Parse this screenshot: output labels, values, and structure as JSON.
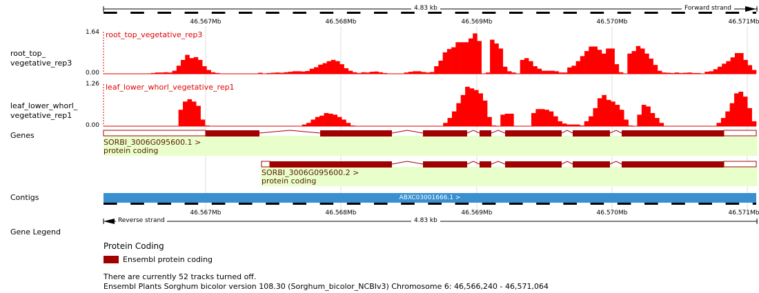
{
  "ruler_top": {
    "length_label": "4.83 kb",
    "strand_label": "Forward strand",
    "ticks": [
      "46.567Mb",
      "46.568Mb",
      "46.569Mb",
      "46.570Mb",
      "46.571Mb"
    ]
  },
  "ruler_bottom": {
    "length_label": "4.83 kb",
    "strand_label": "Reverse strand",
    "ticks": [
      "46.567Mb",
      "46.568Mb",
      "46.569Mb",
      "46.570Mb",
      "46.571Mb"
    ]
  },
  "tracks": [
    {
      "label_line1": "root_top_",
      "label_line2": "vegetative_rep3",
      "title": "root_top_vegetative_rep3",
      "ymax_label": "1.64",
      "ymin_label": "0.00",
      "ymax": 1.64,
      "values": [
        0,
        0,
        0,
        0,
        0,
        0,
        0,
        0,
        0,
        0,
        0,
        0.03,
        0.05,
        0.05,
        0.06,
        0.05,
        0.12,
        0.32,
        0.55,
        0.75,
        0.62,
        0.66,
        0.55,
        0.3,
        0.15,
        0.06,
        0.03,
        0,
        0,
        0,
        0,
        0,
        0,
        0,
        0,
        0,
        0.04,
        0,
        0.03,
        0.04,
        0.05,
        0.04,
        0.06,
        0.08,
        0.1,
        0.1,
        0.09,
        0.11,
        0.2,
        0.26,
        0.36,
        0.42,
        0.5,
        0.55,
        0.5,
        0.38,
        0.22,
        0.12,
        0.06,
        0.03,
        0.06,
        0.05,
        0.08,
        0.09,
        0.06,
        0.03,
        0,
        0,
        0,
        0,
        0.05,
        0.08,
        0.1,
        0.1,
        0.07,
        0.05,
        0.07,
        0.3,
        0.52,
        0.85,
        0.98,
        1.05,
        1.25,
        1.25,
        1.25,
        1.4,
        1.6,
        1.3,
        0,
        0.05,
        1.35,
        1.2,
        1.0,
        0.28,
        0.1,
        0.05,
        0,
        0.55,
        0.62,
        0.5,
        0.3,
        0.2,
        0.12,
        0.12,
        0.12,
        0.1,
        0.05,
        0.05,
        0.25,
        0.32,
        0.5,
        0.7,
        0.9,
        1.08,
        1.08,
        0.95,
        0.8,
        1.0,
        1.0,
        0.38,
        0.06,
        0,
        0.8,
        0.9,
        1.1,
        1.0,
        0.8,
        0.6,
        0.35,
        0.12,
        0.05,
        0.04,
        0.03,
        0.05,
        0.03,
        0.04,
        0.05,
        0.03,
        0.03,
        0,
        0.08,
        0.1,
        0.18,
        0.28,
        0.4,
        0.5,
        0.65,
        0.82,
        0.82,
        0.55,
        0.34,
        0.15
      ]
    },
    {
      "label_line1": "leaf_lower_whorl_",
      "label_line2": "vegetative_rep1",
      "title": "leaf_lower_whorl_vegetative_rep1",
      "ymax_label": "1.26",
      "ymin_label": "0.00",
      "ymax": 1.26,
      "values": [
        0,
        0,
        0,
        0,
        0,
        0,
        0,
        0,
        0,
        0,
        0,
        0,
        0,
        0,
        0,
        0,
        0,
        0.5,
        0.75,
        0.82,
        0.75,
        0.62,
        0.2,
        0.02,
        0,
        0,
        0,
        0,
        0,
        0,
        0,
        0,
        0,
        0,
        0,
        0,
        0,
        0,
        0,
        0,
        0,
        0,
        0,
        0,
        0,
        0.05,
        0.1,
        0.2,
        0.28,
        0.32,
        0.4,
        0.38,
        0.35,
        0.28,
        0.2,
        0.1,
        0.02,
        0,
        0,
        0,
        0,
        0,
        0,
        0,
        0,
        0,
        0,
        0,
        0,
        0,
        0,
        0,
        0,
        0,
        0,
        0,
        0,
        0.1,
        0.25,
        0.45,
        0.7,
        0.95,
        1.2,
        1.15,
        1.1,
        1.0,
        0.78,
        0.28,
        0.02,
        0,
        0.35,
        0.38,
        0.38,
        0,
        0,
        0,
        0,
        0.4,
        0.52,
        0.52,
        0.5,
        0.45,
        0.3,
        0.15,
        0.08,
        0.05,
        0.05,
        0.05,
        0.02,
        0.15,
        0.3,
        0.55,
        0.85,
        0.95,
        0.8,
        0.75,
        0.65,
        0.5,
        0.2,
        0.02,
        0,
        0.35,
        0.65,
        0.6,
        0.4,
        0.25,
        0.1,
        0,
        0,
        0,
        0,
        0,
        0,
        0,
        0,
        0,
        0,
        0,
        0,
        0.1,
        0.25,
        0.45,
        0.7,
        1.0,
        1.05,
        0.9,
        0.55,
        0.15
      ]
    }
  ],
  "genes_label": "Genes",
  "genes": [
    {
      "name": "SORBI_3006G095600.1 >",
      "biotype": "protein coding"
    },
    {
      "name": "SORBI_3006G095600.2 >",
      "biotype": "protein coding"
    }
  ],
  "contigs_label": "Contigs",
  "contig_name": "ABXC03001666.1 >",
  "gene_legend_label": "Gene Legend",
  "legend": {
    "heading": "Protein Coding",
    "item": "Ensembl protein coding",
    "item_color": "#a00000"
  },
  "footer": {
    "tracks_off": "There are currently 52 tracks turned off.",
    "version": "Ensembl Plants Sorghum bicolor version 108.30 (Sorghum_bicolor_NCBIv3) Chromosome 6: 46,566,240 - 46,571,064"
  },
  "colors": {
    "signal": "#ff0000",
    "gene": "#a00000",
    "gene_bg": "#e8ffcc",
    "contig": "#3a8fd0"
  }
}
